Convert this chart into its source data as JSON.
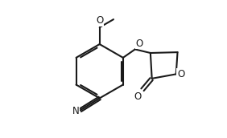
{
  "bg_color": "#ffffff",
  "line_color": "#1a1a1a",
  "lw": 1.5,
  "dbo": 0.013,
  "fs": 8.5,
  "text_color": "#1a1a1a",
  "xlim": [
    -0.05,
    0.92
  ],
  "ylim": [
    0.02,
    0.95
  ]
}
